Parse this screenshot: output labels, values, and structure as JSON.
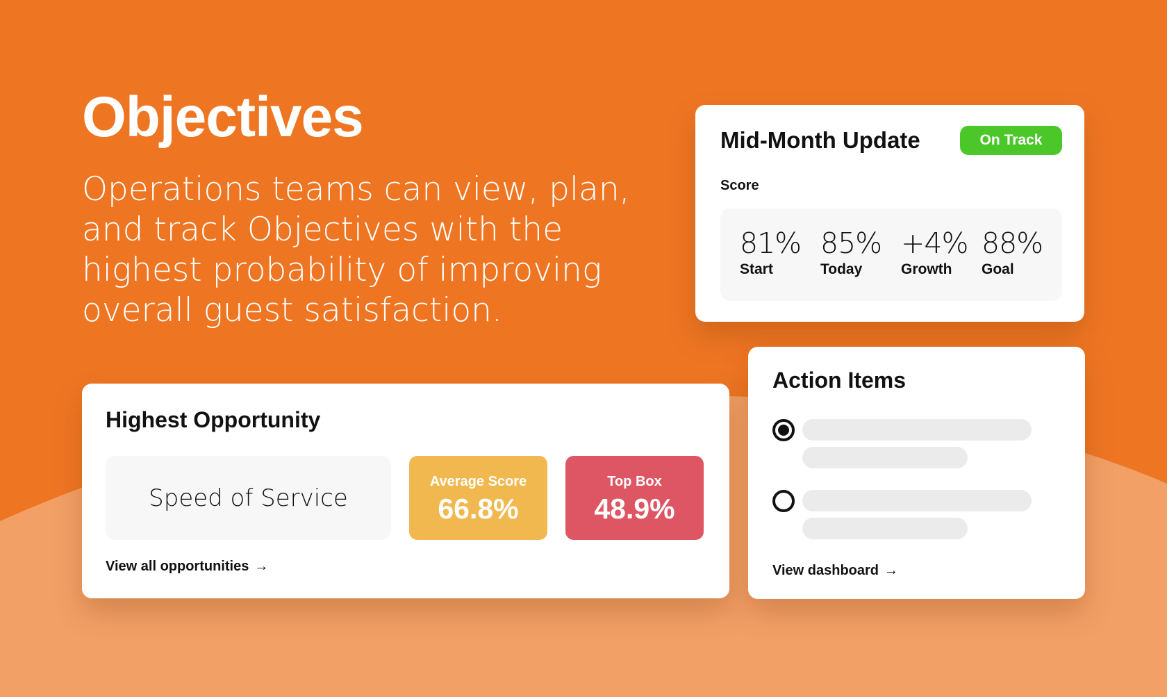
{
  "colors": {
    "background": "#EE7623",
    "wave": "#F2A066",
    "on_track": "#4CC72A",
    "average_score": "#F0B84E",
    "top_box": "#DE5663"
  },
  "hero": {
    "title": "Objectives",
    "text": "Operations teams can view, plan, and track Objectives with the highest probability of improving overall guest satisfaction."
  },
  "mid_month": {
    "title": "Mid-Month Update",
    "status": "On Track",
    "score_label": "Score",
    "stats": [
      {
        "value": "81%",
        "label": "Start"
      },
      {
        "value": "85%",
        "label": "Today"
      },
      {
        "value": "+4%",
        "label": "Growth"
      },
      {
        "value": "88%",
        "label": "Goal"
      }
    ]
  },
  "highest_opportunity": {
    "title": "Highest Opportunity",
    "name": "Speed of Service",
    "average_score": {
      "label": "Average Score",
      "value": "66.8%"
    },
    "top_box": {
      "label": "Top Box",
      "value": "48.9%"
    },
    "link": "View all opportunities",
    "link_icon": "arrow-right-icon"
  },
  "action_items": {
    "title": "Action Items",
    "items": [
      {
        "checked": true
      },
      {
        "checked": false
      }
    ],
    "link": "View dashboard",
    "link_icon": "arrow-right-icon"
  }
}
